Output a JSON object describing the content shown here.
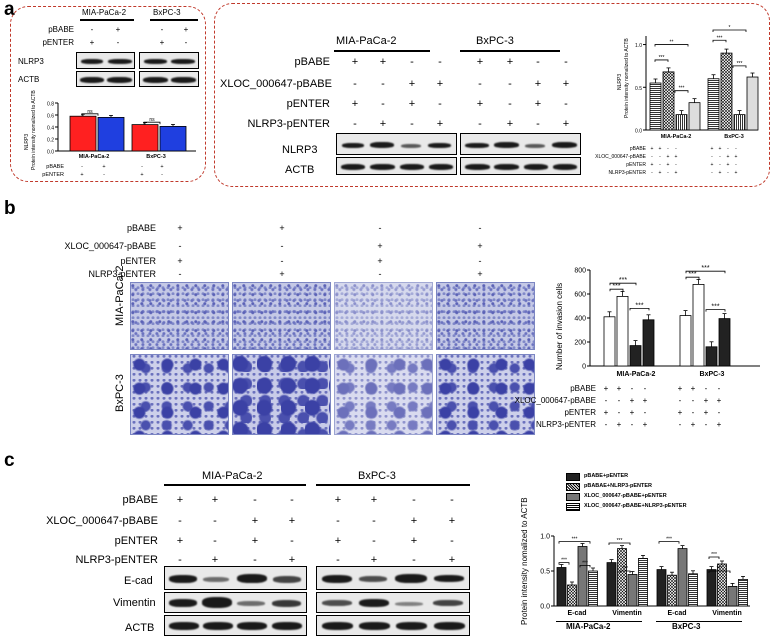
{
  "panels": {
    "a": "a",
    "b": "b",
    "c": "c"
  },
  "a_left": {
    "cells": [
      "MIA-PaCa-2",
      "BxPC-3"
    ],
    "row_pbabe": {
      "label": "pBABE",
      "values": [
        "-",
        "+",
        "-",
        "+"
      ]
    },
    "row_penter": {
      "label": "pENTER",
      "values": [
        "+",
        "-",
        "+",
        "-"
      ]
    },
    "blots": [
      "NLRP3",
      "ACTB"
    ],
    "chart_ylabel1": "NLRP3",
    "chart_ylabel2": "Protein intensity nomalized to ACTB",
    "bottom_rows": [
      {
        "label": "pBABE",
        "values": [
          "-",
          "+",
          "-",
          "+"
        ]
      },
      {
        "label": "pENTER",
        "values": [
          "+",
          "-",
          "+",
          "-"
        ]
      }
    ]
  },
  "a_right": {
    "cells": [
      "MIA-PaCa-2",
      "BxPC-3"
    ],
    "rows": [
      {
        "label": "pBABE",
        "values": [
          "+",
          "+",
          "-",
          "-",
          "+",
          "+",
          "-",
          "-"
        ]
      },
      {
        "label": "XLOC_000647-pBABE",
        "values": [
          "-",
          "-",
          "+",
          "+",
          "-",
          "-",
          "+",
          "+"
        ]
      },
      {
        "label": "pENTER",
        "values": [
          "+",
          "-",
          "+",
          "-",
          "+",
          "-",
          "+",
          "-"
        ]
      },
      {
        "label": "NLRP3-pENTER",
        "values": [
          "-",
          "+",
          "-",
          "+",
          "-",
          "+",
          "-",
          "+"
        ]
      }
    ],
    "blots": [
      "NLRP3",
      "ACTB"
    ],
    "chart_ylabel1": "NLRP3",
    "chart_ylabel2": "Protein intensity nomalized to ACTB",
    "bottom_rows": [
      {
        "label": "pBABE",
        "values": [
          "+",
          "+",
          "-",
          "-",
          "+",
          "+",
          "-",
          "-"
        ]
      },
      {
        "label": "XLOC_000647-pBABE",
        "values": [
          "-",
          "-",
          "+",
          "+",
          "-",
          "-",
          "+",
          "+"
        ]
      },
      {
        "label": "pENTER",
        "values": [
          "+",
          "-",
          "+",
          "-",
          "+",
          "-",
          "+",
          "-"
        ]
      },
      {
        "label": "NLRP3-pENTER",
        "values": [
          "-",
          "+",
          "-",
          "+",
          "-",
          "+",
          "-",
          "+"
        ]
      }
    ]
  },
  "b": {
    "rows": [
      {
        "label": "pBABE",
        "values": [
          "+",
          "+",
          "-",
          "-"
        ]
      },
      {
        "label": "XLOC_000647-pBABE",
        "values": [
          "-",
          "-",
          "+",
          "+"
        ]
      },
      {
        "label": "pENTER",
        "values": [
          "+",
          "-",
          "+",
          "-"
        ]
      },
      {
        "label": "NLRP3-pENTER",
        "values": [
          "-",
          "+",
          "-",
          "+"
        ]
      }
    ],
    "row_labels": [
      "MIA-PaCa-2",
      "BxPC-3"
    ],
    "chart_ylabel": "Number of invasion cells",
    "bottom_rows": [
      {
        "label": "pBABE",
        "values": [
          "+",
          "+",
          "-",
          "-",
          "+",
          "+",
          "-",
          "-"
        ]
      },
      {
        "label": "XLOC_000647-pBABE",
        "values": [
          "-",
          "-",
          "+",
          "+",
          "-",
          "-",
          "+",
          "+"
        ]
      },
      {
        "label": "pENTER",
        "values": [
          "+",
          "-",
          "+",
          "-",
          "+",
          "-",
          "+",
          "-"
        ]
      },
      {
        "label": "NLRP3-pENTER",
        "values": [
          "-",
          "+",
          "-",
          "+",
          "-",
          "+",
          "-",
          "+"
        ]
      }
    ]
  },
  "c": {
    "cells": [
      "MIA-PaCa-2",
      "BxPC-3"
    ],
    "rows": [
      {
        "label": "pBABE",
        "values": [
          "+",
          "+",
          "-",
          "-",
          "+",
          "+",
          "-",
          "-"
        ]
      },
      {
        "label": "XLOC_000647-pBABE",
        "values": [
          "-",
          "-",
          "+",
          "+",
          "-",
          "-",
          "+",
          "+"
        ]
      },
      {
        "label": "pENTER",
        "values": [
          "+",
          "-",
          "+",
          "-",
          "+",
          "-",
          "+",
          "-"
        ]
      },
      {
        "label": "NLRP3-pENTER",
        "values": [
          "-",
          "+",
          "-",
          "+",
          "-",
          "+",
          "-",
          "+"
        ]
      }
    ],
    "blots": [
      "E-cad",
      "Vimentin",
      "ACTB"
    ],
    "chart_ylabel": "Protein intensity nomalized to ACTB",
    "legend": [
      "pBABE+pENTER",
      "pBABAE+NLRP3-pENTER",
      "XLOC_000647-pBABE+pENTER",
      "XLOC_000647-pBABE+NLRP3-pENTER"
    ],
    "x_proteins": [
      "E-cad",
      "Vimentin",
      "E-cad",
      "Vimentin"
    ],
    "x_cells": [
      "MIA-PaCa-2",
      "BxPC-3"
    ]
  },
  "chart_data": [
    {
      "type": "bar",
      "id": "a_left_chart",
      "categories": [
        "MIA-PaCa-2",
        "BxPC-3"
      ],
      "series": [
        {
          "values": [
            0.58,
            0.44
          ]
        },
        {
          "values": [
            0.56,
            0.41
          ]
        }
      ],
      "ylim": [
        0,
        0.8
      ],
      "significance": [
        "ns",
        "ns"
      ],
      "colors": [
        "#ff2020",
        "#1f3fe0"
      ]
    },
    {
      "type": "bar",
      "id": "a_right_chart",
      "categories": [
        "MIA-PaCa-2",
        "BxPC-3"
      ],
      "series": [
        {
          "values": [
            0.55,
            0.6
          ]
        },
        {
          "values": [
            0.68,
            0.9
          ]
        },
        {
          "values": [
            0.18,
            0.18
          ]
        },
        {
          "values": [
            0.32,
            0.62
          ]
        }
      ],
      "ylim": [
        0,
        1.1
      ],
      "significance": [
        "***",
        "**",
        "***",
        "***",
        "*",
        "***"
      ]
    },
    {
      "type": "bar",
      "id": "b_chart",
      "categories": [
        "MIA-PaCa-2",
        "BxPC-3"
      ],
      "series": [
        {
          "values": [
            410,
            420
          ]
        },
        {
          "values": [
            580,
            680
          ]
        },
        {
          "values": [
            170,
            160
          ]
        },
        {
          "values": [
            385,
            395
          ]
        }
      ],
      "ylim": [
        0,
        800
      ],
      "yticks": [
        0,
        200,
        400,
        600,
        800
      ],
      "significance": [
        "***",
        "***",
        "***",
        "***",
        "***",
        "***"
      ]
    },
    {
      "type": "bar",
      "id": "c_chart",
      "categories": [
        "E-cad",
        "Vimentin",
        "E-cad",
        "Vimentin"
      ],
      "series": [
        {
          "values": [
            0.55,
            0.62,
            0.52,
            0.52
          ]
        },
        {
          "values": [
            0.3,
            0.82,
            0.44,
            0.6
          ]
        },
        {
          "values": [
            0.85,
            0.45,
            0.82,
            0.28
          ]
        },
        {
          "values": [
            0.5,
            0.68,
            0.46,
            0.38
          ]
        }
      ],
      "ylim": [
        0,
        1.0
      ],
      "yticks": [
        0.0,
        0.5,
        1.0
      ],
      "significance": [
        "***",
        "***",
        "***",
        "***",
        "***",
        "***",
        "***",
        "***"
      ]
    }
  ]
}
